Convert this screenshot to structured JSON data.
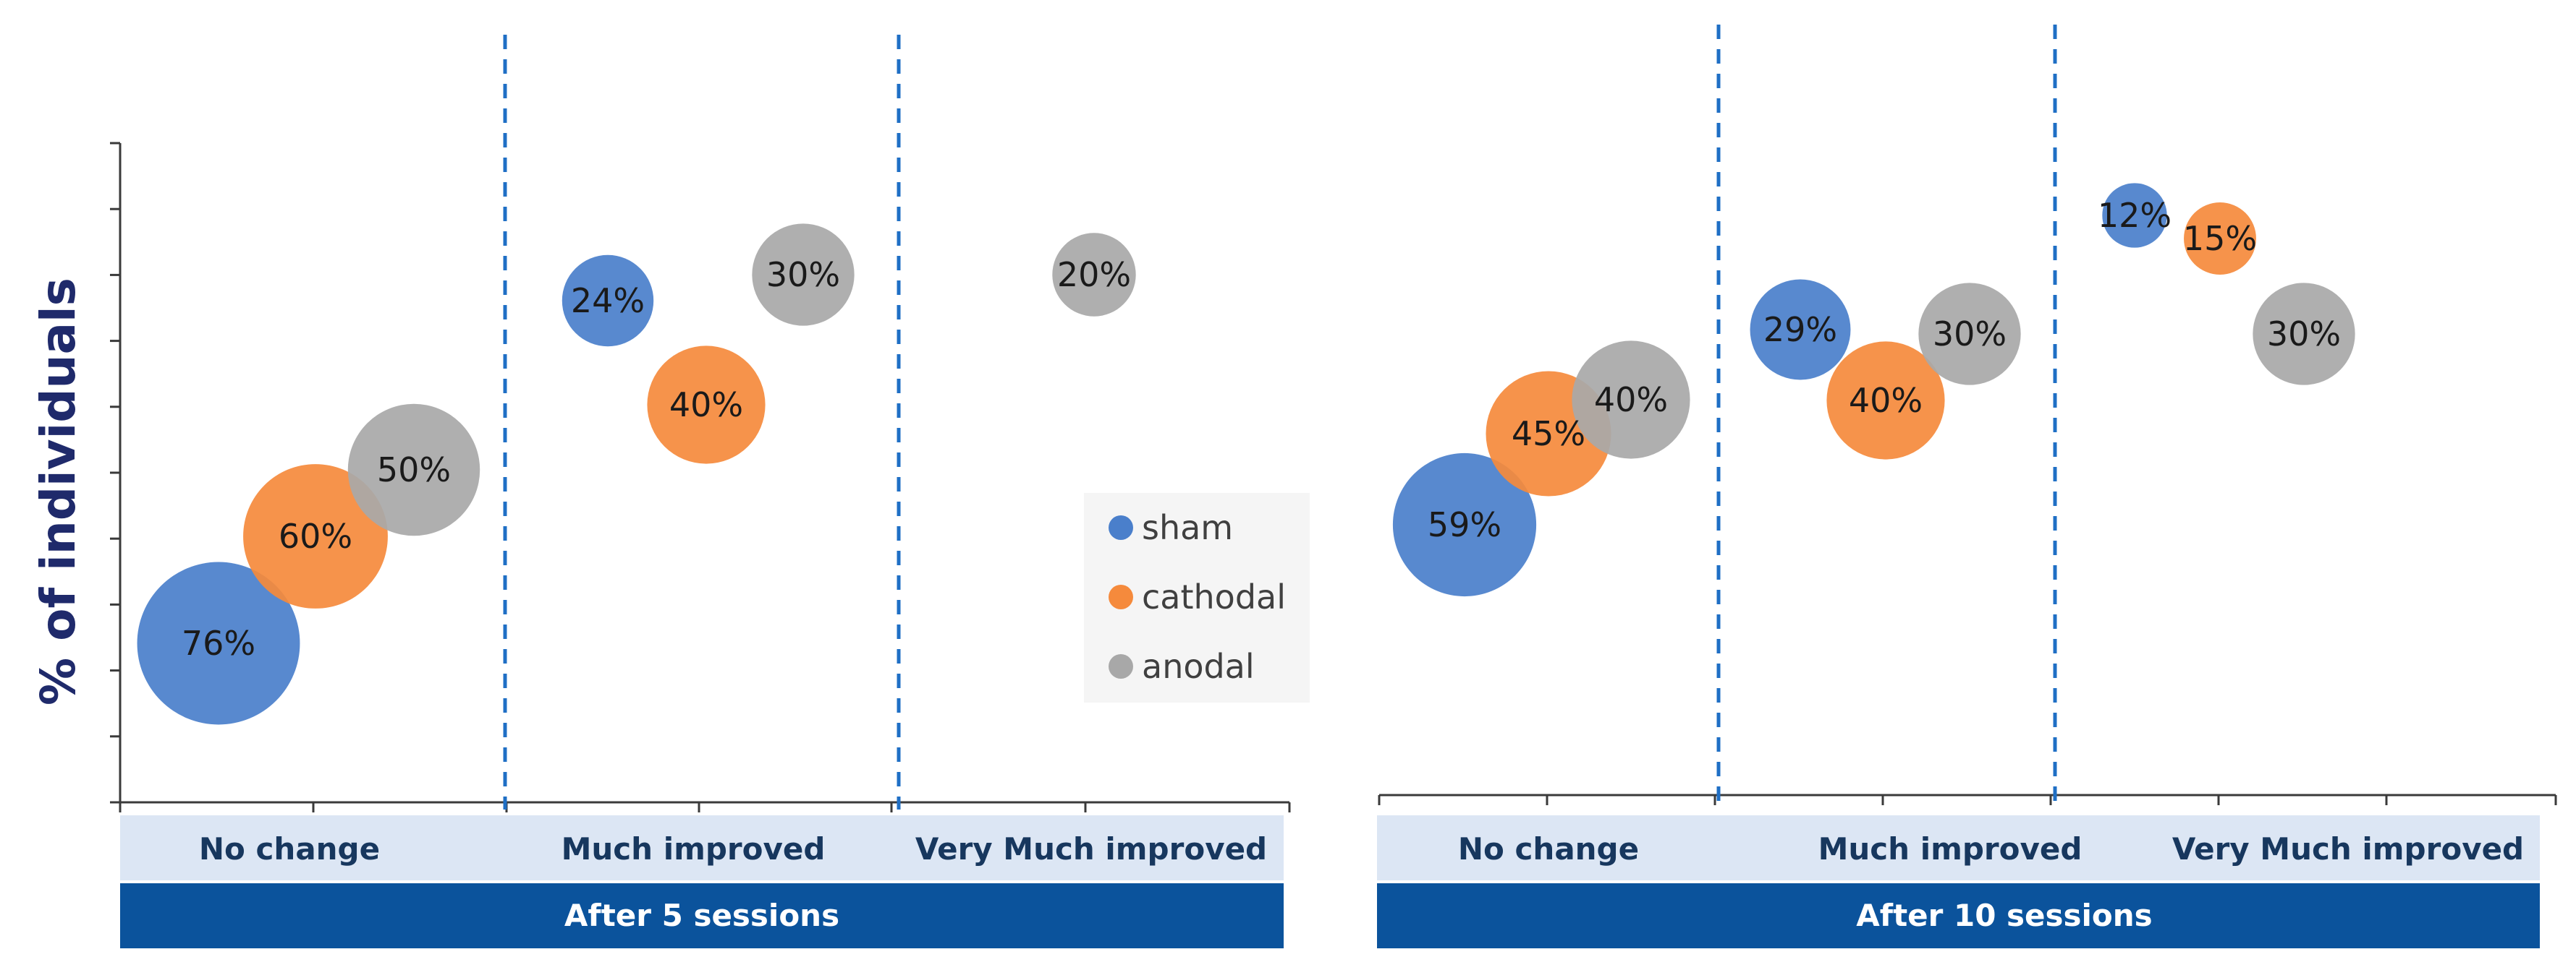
{
  "colors": {
    "sham": "#4a7fcb",
    "cathodal": "#f58a3c",
    "anodal": "#a8a8a8",
    "divider": "#1f6fc5",
    "category_band": "#dce6f4",
    "group_band": "#0b539c",
    "axis": "#3a3a3a"
  },
  "chart_data": [
    {
      "type": "bubble",
      "group_label": "After 5 sessions",
      "categories": [
        "No change",
        "Much improved",
        "Very Much improved"
      ],
      "ylabel": "% of individuals",
      "series": [
        {
          "name": "sham",
          "values": [
            76,
            24,
            null
          ],
          "labels": [
            "76%",
            "24%",
            ""
          ]
        },
        {
          "name": "cathodal",
          "values": [
            60,
            40,
            null
          ],
          "labels": [
            "60%",
            "40%",
            ""
          ]
        },
        {
          "name": "anodal",
          "values": [
            50,
            30,
            20
          ],
          "labels": [
            "50%",
            "30%",
            "20%"
          ]
        }
      ]
    },
    {
      "type": "bubble",
      "group_label": "After 10 sessions",
      "categories": [
        "No change",
        "Much improved",
        "Very Much improved"
      ],
      "series": [
        {
          "name": "sham",
          "values": [
            59,
            29,
            12
          ],
          "labels": [
            "59%",
            "29%",
            "12%"
          ]
        },
        {
          "name": "cathodal",
          "values": [
            45,
            40,
            15
          ],
          "labels": [
            "45%",
            "40%",
            "15%"
          ]
        },
        {
          "name": "anodal",
          "values": [
            40,
            30,
            30
          ],
          "labels": [
            "40%",
            "30%",
            "30%"
          ]
        }
      ]
    }
  ],
  "legend": {
    "placement": "between-panels",
    "items": [
      "sham",
      "cathodal",
      "anodal"
    ]
  }
}
